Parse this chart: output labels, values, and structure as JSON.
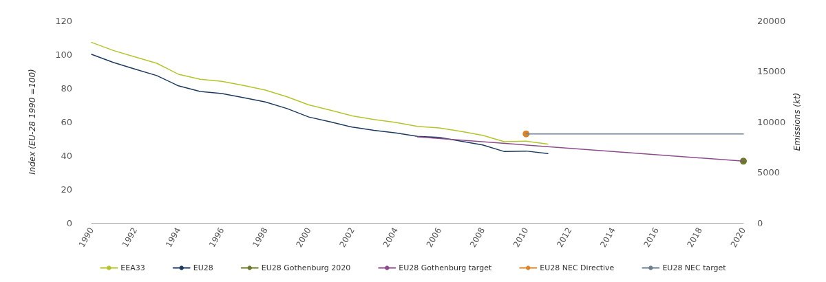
{
  "chart_data": {
    "type": "line",
    "ylabel": "Index (EU-28 1990 =100)",
    "y2label": "Emissions (kt)",
    "xlim": [
      1990,
      2020
    ],
    "xticks": [
      1990,
      1992,
      1994,
      1996,
      1998,
      2000,
      2002,
      2004,
      2006,
      2008,
      2010,
      2012,
      2014,
      2016,
      2018,
      2020
    ],
    "ylim": [
      0,
      120
    ],
    "yticks": [
      0,
      20,
      40,
      60,
      80,
      100,
      120
    ],
    "y2lim": [
      0,
      20000
    ],
    "y2ticks": [
      0,
      5000,
      10000,
      15000,
      20000
    ],
    "grid": false,
    "legend": "bottom",
    "series": [
      {
        "name": "EEA33",
        "color": "#b5c42a",
        "x": [
          1990,
          1991,
          1992,
          1993,
          1994,
          1995,
          1996,
          1997,
          1998,
          1999,
          2000,
          2001,
          2002,
          2003,
          2004,
          2005,
          2006,
          2007,
          2008,
          2009,
          2010,
          2011
        ],
        "values": [
          107.1,
          102.3,
          98.5,
          94.7,
          88.2,
          85.2,
          84.0,
          81.5,
          78.8,
          74.8,
          70.0,
          66.8,
          63.5,
          61.3,
          59.6,
          57.2,
          56.3,
          54.3,
          51.9,
          48.2,
          48.5,
          46.7
        ]
      },
      {
        "name": "EU28",
        "color": "#1c3a5e",
        "x": [
          1990,
          1991,
          1992,
          1993,
          1994,
          1995,
          1996,
          1997,
          1998,
          1999,
          2000,
          2001,
          2002,
          2003,
          2004,
          2005,
          2006,
          2007,
          2008,
          2009,
          2010,
          2011
        ],
        "values": [
          100,
          95.2,
          91.2,
          87.4,
          81.3,
          78.0,
          76.7,
          74.3,
          71.7,
          67.8,
          62.8,
          59.9,
          56.8,
          54.9,
          53.4,
          51.3,
          50.7,
          48.5,
          46.2,
          42.3,
          42.6,
          41.1
        ]
      },
      {
        "name": "EU28 Gothenburg 2020",
        "color": "#6b7a2a",
        "axis": "y2",
        "marker": "circle",
        "x": [
          2020
        ],
        "values": [
          6100
        ]
      },
      {
        "name": "EU28 Gothenburg target",
        "color": "#8b4b8b",
        "axis": "y2",
        "x": [
          2005,
          2020
        ],
        "values": [
          8500,
          6100
        ]
      },
      {
        "name": "EU28 NEC Directive",
        "color": "#d9862b",
        "axis": "y2",
        "marker": "circle",
        "x": [
          2010
        ],
        "values": [
          8800
        ]
      },
      {
        "name": "EU28 NEC target",
        "color": "#6d7f8f",
        "axis": "y2",
        "x": [
          2010,
          2020
        ],
        "values": [
          8800,
          8800
        ]
      }
    ]
  }
}
